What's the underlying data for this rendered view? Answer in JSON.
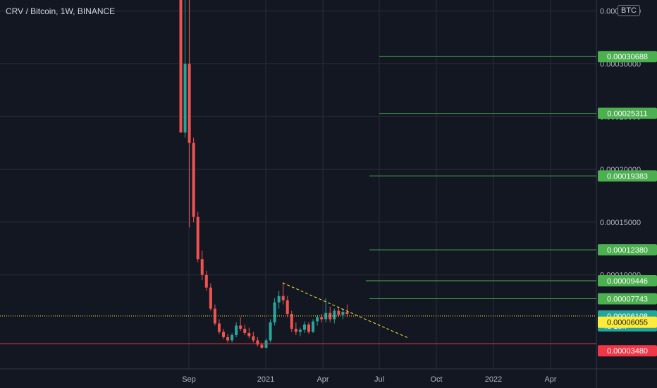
{
  "header": {
    "title": "CRV / Bitcoin, 1W, BINANCE",
    "currency": "BTC"
  },
  "chart_data": {
    "type": "candlestick",
    "title": "CRV / Bitcoin, 1W, BINANCE",
    "ylabel": "BTC",
    "ylim": [
      1.2e-05,
      0.00037
    ],
    "yticks": [
      "0.00015000",
      "0.00020000",
      "0.00025000",
      "0.00030000",
      "0.00035000",
      "0.00010000"
    ],
    "xticks": [
      "Sep",
      "2021",
      "Apr",
      "Jul",
      "Oct",
      "2022",
      "Apr"
    ],
    "colors": {
      "up": "#26a69a",
      "down": "#ef5350",
      "level": "#4caf50",
      "current": "#26a69a",
      "dotted": "#ffeb3b",
      "support": "#f23645"
    },
    "candles": [
      {
        "o": 0.00037,
        "h": 0.00037,
        "l": 0.000235,
        "c": 0.000235
      },
      {
        "o": 0.000235,
        "h": 0.00037,
        "l": 0.00023,
        "c": 0.0003
      },
      {
        "o": 0.0003,
        "h": 0.00037,
        "l": 0.000145,
        "c": 0.000225
      },
      {
        "o": 0.000225,
        "h": 0.00023,
        "l": 0.00015,
        "c": 0.000155
      },
      {
        "o": 0.000155,
        "h": 0.00016,
        "l": 0.000112,
        "c": 0.000115
      },
      {
        "o": 0.000115,
        "h": 0.000123,
        "l": 9.5e-05,
        "c": 0.0001
      },
      {
        "o": 0.0001,
        "h": 0.000104,
        "l": 8.5e-05,
        "c": 8.8e-05
      },
      {
        "o": 8.8e-05,
        "h": 9.2e-05,
        "l": 6.6e-05,
        "c": 6.8e-05
      },
      {
        "o": 6.8e-05,
        "h": 7.2e-05,
        "l": 5.2e-05,
        "c": 5.4e-05
      },
      {
        "o": 5.4e-05,
        "h": 5.8e-05,
        "l": 4.4e-05,
        "c": 4.6e-05
      },
      {
        "o": 4.6e-05,
        "h": 4.9e-05,
        "l": 3.9e-05,
        "c": 4.1e-05
      },
      {
        "o": 4.1e-05,
        "h": 4.4e-05,
        "l": 3.6e-05,
        "c": 3.8e-05
      },
      {
        "o": 3.8e-05,
        "h": 4.5e-05,
        "l": 3.6e-05,
        "c": 4.3e-05
      },
      {
        "o": 4.3e-05,
        "h": 5.5e-05,
        "l": 4.1e-05,
        "c": 5.2e-05
      },
      {
        "o": 5.2e-05,
        "h": 6e-05,
        "l": 4.7e-05,
        "c": 4.9e-05
      },
      {
        "o": 4.9e-05,
        "h": 5.3e-05,
        "l": 4.3e-05,
        "c": 4.5e-05
      },
      {
        "o": 4.5e-05,
        "h": 5e-05,
        "l": 4e-05,
        "c": 4.2e-05
      },
      {
        "o": 4.2e-05,
        "h": 4.6e-05,
        "l": 3.6e-05,
        "c": 3.8e-05
      },
      {
        "o": 3.8e-05,
        "h": 4.1e-05,
        "l": 3.2e-05,
        "c": 3.4e-05
      },
      {
        "o": 3.4e-05,
        "h": 3.6e-05,
        "l": 3e-05,
        "c": 3.1e-05
      },
      {
        "o": 3.1e-05,
        "h": 4e-05,
        "l": 3e-05,
        "c": 3.8e-05
      },
      {
        "o": 3.8e-05,
        "h": 5.8e-05,
        "l": 3.6e-05,
        "c": 5.5e-05
      },
      {
        "o": 5.5e-05,
        "h": 7.8e-05,
        "l": 5.2e-05,
        "c": 7.4e-05
      },
      {
        "o": 7.4e-05,
        "h": 8.5e-05,
        "l": 6.8e-05,
        "c": 8e-05
      },
      {
        "o": 8e-05,
        "h": 9.3e-05,
        "l": 7.2e-05,
        "c": 7.6e-05
      },
      {
        "o": 7.6e-05,
        "h": 8e-05,
        "l": 6e-05,
        "c": 6.3e-05
      },
      {
        "o": 6.3e-05,
        "h": 6.6e-05,
        "l": 4.6e-05,
        "c": 4.9e-05
      },
      {
        "o": 4.9e-05,
        "h": 5.5e-05,
        "l": 4.3e-05,
        "c": 4.6e-05
      },
      {
        "o": 4.6e-05,
        "h": 5e-05,
        "l": 4.2e-05,
        "c": 4.8e-05
      },
      {
        "o": 4.8e-05,
        "h": 5.6e-05,
        "l": 4.5e-05,
        "c": 5.3e-05
      },
      {
        "o": 5.3e-05,
        "h": 5.5e-05,
        "l": 4.4e-05,
        "c": 4.6e-05
      },
      {
        "o": 4.6e-05,
        "h": 5.8e-05,
        "l": 4.5e-05,
        "c": 5.6e-05
      },
      {
        "o": 5.6e-05,
        "h": 6.2e-05,
        "l": 5.2e-05,
        "c": 6e-05
      },
      {
        "o": 6e-05,
        "h": 6.3e-05,
        "l": 5.5e-05,
        "c": 5.8e-05
      },
      {
        "o": 5.8e-05,
        "h": 7.8e-05,
        "l": 5.5e-05,
        "c": 6.4e-05
      },
      {
        "o": 6.4e-05,
        "h": 7e-05,
        "l": 5.5e-05,
        "c": 5.8e-05
      },
      {
        "o": 5.8e-05,
        "h": 6.8e-05,
        "l": 5.4e-05,
        "c": 6.6e-05
      },
      {
        "o": 6.6e-05,
        "h": 7e-05,
        "l": 6e-05,
        "c": 6.2e-05
      },
      {
        "o": 6.2e-05,
        "h": 6.8e-05,
        "l": 5.8e-05,
        "c": 6.5e-05
      },
      {
        "o": 6.5e-05,
        "h": 7.2e-05,
        "l": 6e-05,
        "c": 6.3e-05
      }
    ],
    "levels": [
      {
        "label": "0.00030688",
        "value": 0.00030688
      },
      {
        "label": "0.00025311",
        "value": 0.00025311
      },
      {
        "label": "0.00019383",
        "value": 0.00019383
      },
      {
        "label": "0.00012380",
        "value": 0.0001238
      },
      {
        "label": "0.00009446",
        "value": 9.446e-05
      },
      {
        "label": "0.00007743",
        "value": 7.743e-05
      }
    ],
    "current_price": {
      "label": "0.00006108",
      "countdown": "4d 15h",
      "value": 6.108e-05
    },
    "dotted_level": {
      "label": "0.00006055",
      "value": 6.055e-05
    },
    "support_level": {
      "label": "0.00003480",
      "value": 3.48e-05
    },
    "trendline": {
      "start_value": 9.25e-05,
      "end_value": 4e-05
    }
  }
}
